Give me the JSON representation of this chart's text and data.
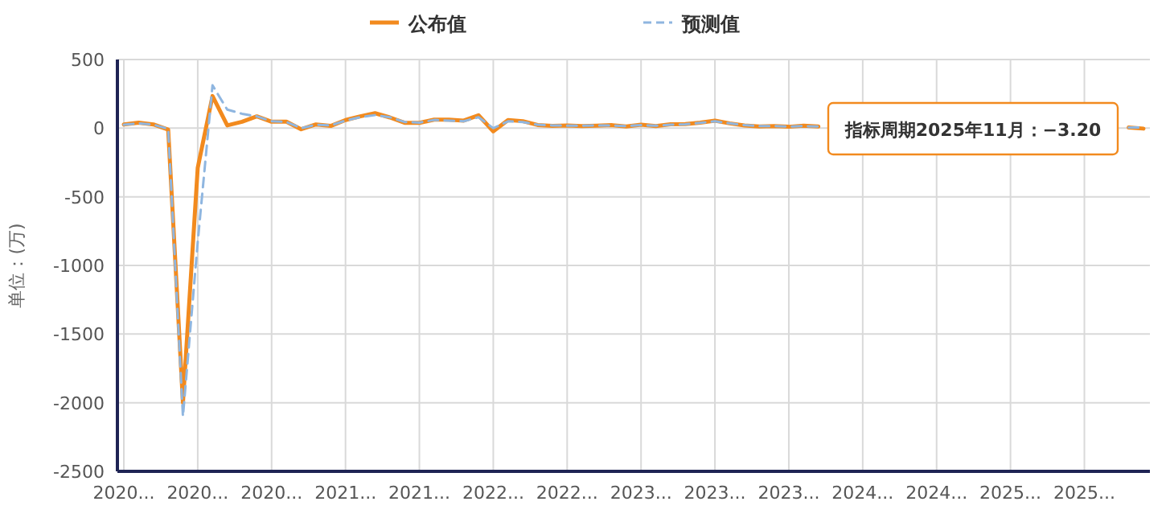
{
  "chart_data": {
    "type": "line",
    "ylabel": "单位：(万)",
    "categories": [
      "2020...",
      null,
      null,
      null,
      null,
      "2020...",
      null,
      null,
      null,
      null,
      "2020...",
      null,
      null,
      null,
      null,
      "2021...",
      null,
      null,
      null,
      null,
      "2021...",
      null,
      null,
      null,
      null,
      "2022...",
      null,
      null,
      null,
      null,
      "2022...",
      null,
      null,
      null,
      null,
      "2023...",
      null,
      null,
      null,
      null,
      "2023...",
      null,
      null,
      null,
      null,
      "2023...",
      null,
      null,
      null,
      null,
      "2024...",
      null,
      null,
      null,
      null,
      "2024...",
      null,
      null,
      null,
      null,
      "2025...",
      null,
      null,
      null,
      null,
      "2025...",
      null,
      null,
      null,
      null
    ],
    "series": [
      {
        "name": "公布值",
        "color": "#f28a1e",
        "line_style": "solid",
        "values": [
          27,
          40,
          27,
          -10,
          -2000,
          -290,
          234,
          20,
          47,
          86,
          47,
          47,
          -8,
          27,
          16,
          59,
          86,
          109,
          78,
          39,
          39,
          62,
          62,
          55,
          94,
          -23,
          59,
          51,
          23,
          16,
          20,
          15,
          18,
          22,
          12,
          25,
          15,
          28,
          30,
          40,
          55,
          35,
          20,
          12,
          15,
          10,
          18,
          12,
          null,
          null,
          null,
          null,
          null,
          null,
          null,
          null,
          null,
          null,
          null,
          null,
          null,
          null,
          null,
          null,
          null,
          null,
          null,
          null,
          5,
          -3.2
        ]
      },
      {
        "name": "预测值",
        "color": "#8fb6e0",
        "line_style": "dashed",
        "values": [
          25,
          35,
          25,
          -5,
          -2100,
          -830,
          312,
          135,
          105,
          86,
          50,
          45,
          0,
          25,
          20,
          55,
          80,
          95,
          80,
          45,
          40,
          60,
          55,
          50,
          80,
          0,
          50,
          45,
          25,
          20,
          18,
          18,
          20,
          20,
          15,
          22,
          18,
          25,
          28,
          38,
          50,
          35,
          22,
          15,
          15,
          12,
          15,
          12,
          null,
          null,
          null,
          null,
          null,
          null,
          null,
          null,
          null,
          null,
          null,
          null,
          null,
          null,
          null,
          null,
          null,
          null,
          null,
          null,
          5,
          5
        ]
      }
    ],
    "ylim": [
      -2500,
      500
    ],
    "yticks": [
      500,
      0,
      -500,
      -1000,
      -1500,
      -2000,
      -2500
    ],
    "grid": true,
    "legend": "top",
    "annotations": [
      "指标周期2025年11月：−3.20"
    ]
  }
}
